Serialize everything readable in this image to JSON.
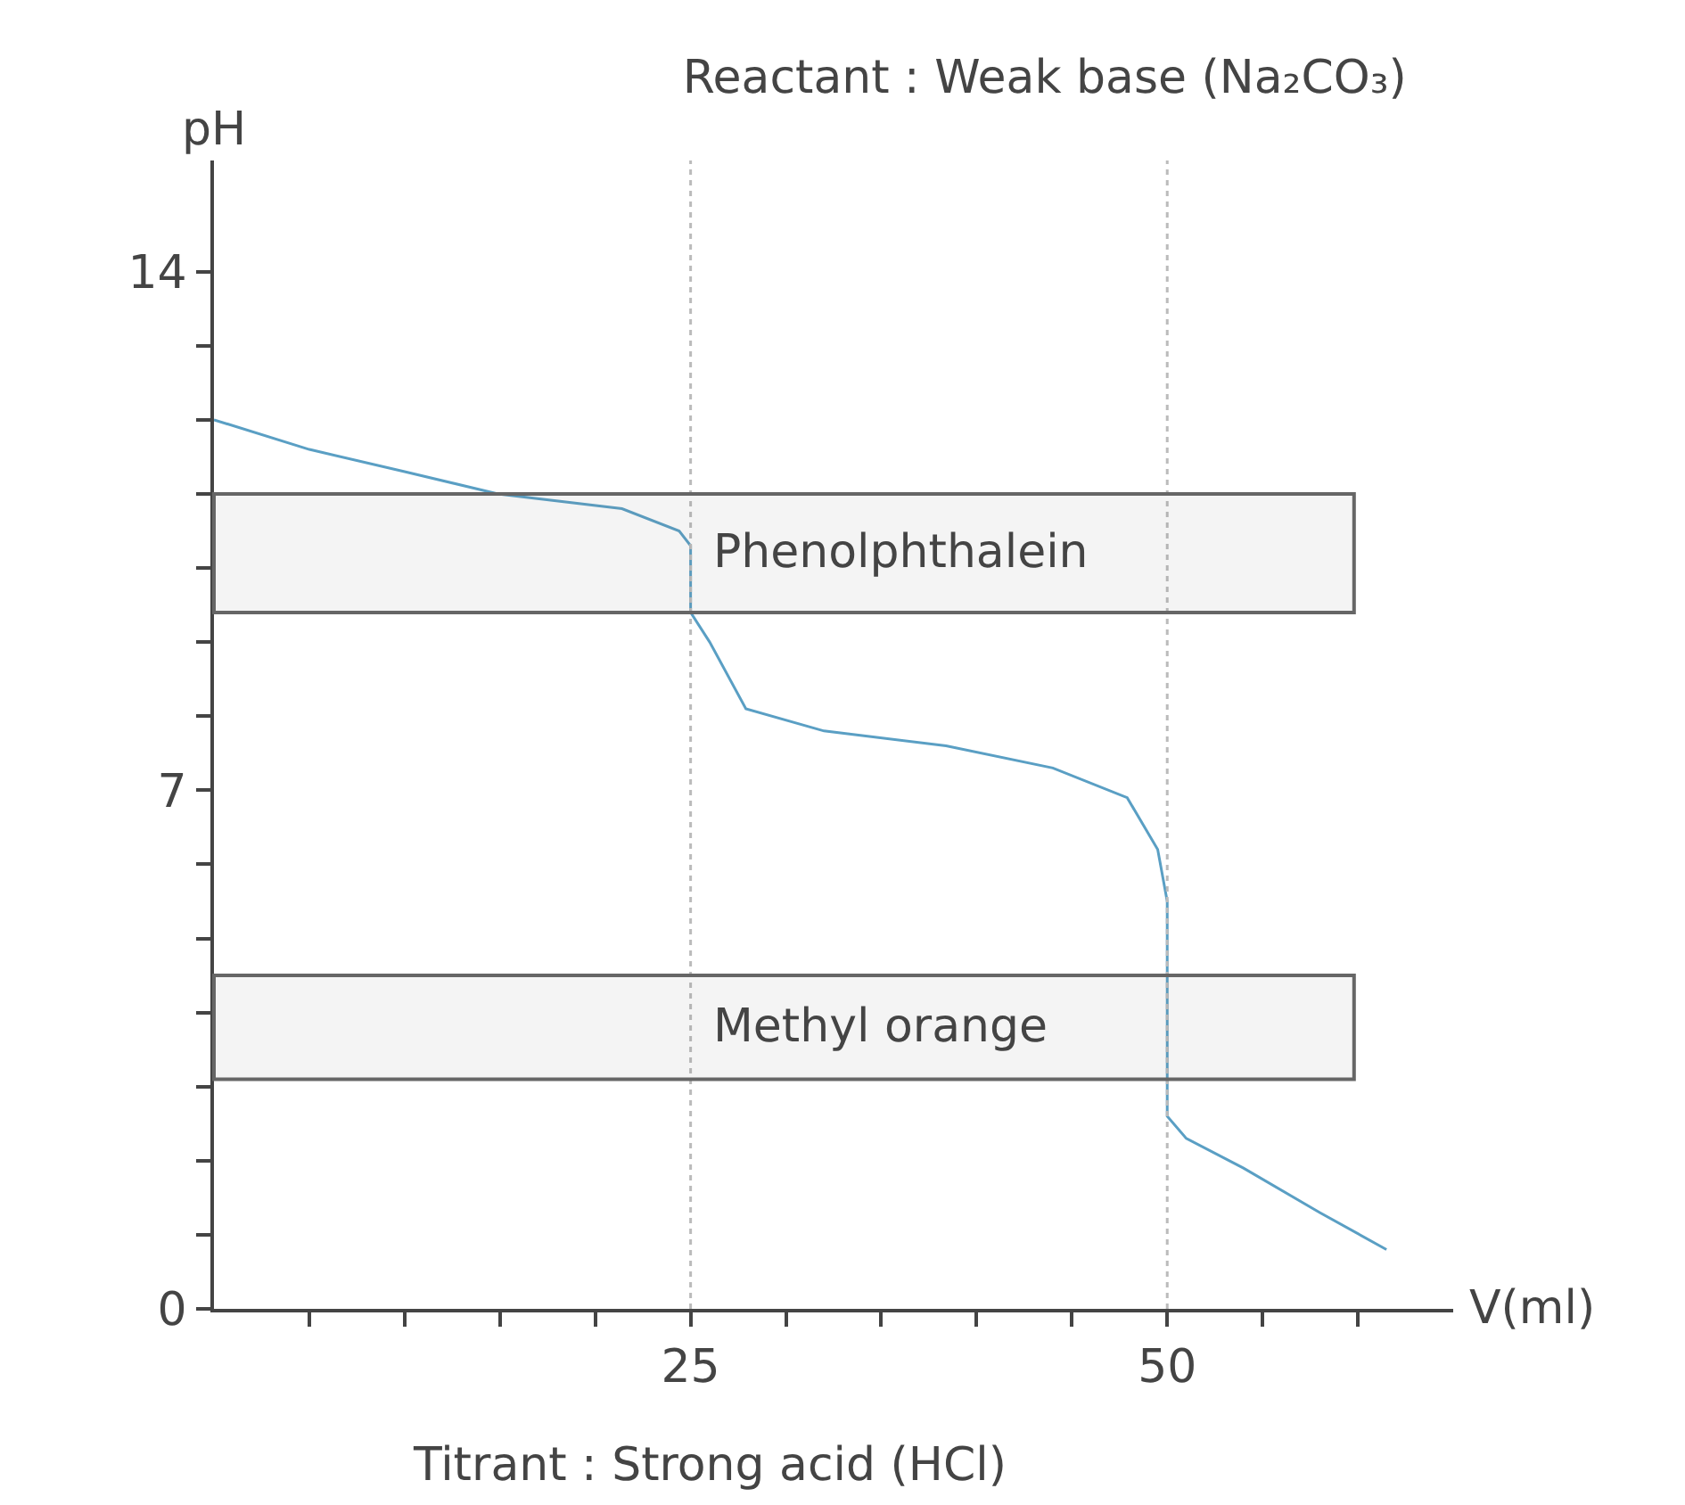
{
  "chart_data": {
    "type": "line",
    "title": "Reactant : Weak base (Na₂CO₃)",
    "xlabel": "V(ml)",
    "ylabel": "pH",
    "annotations": [
      "Titrant : Strong acid (HCl)"
    ],
    "series": [
      {
        "color": "#5a9fc4",
        "x": [
          0,
          5,
          10,
          14.9,
          21.4,
          24.4,
          25,
          25,
          26,
          27.9,
          32,
          38.4,
          44,
          47.9,
          49.5,
          50,
          50,
          51,
          54,
          58,
          61.5
        ],
        "values": [
          12,
          11.6,
          11.3,
          11.0,
          10.8,
          10.5,
          10.3,
          9.4,
          9.0,
          8.1,
          7.8,
          7.6,
          7.3,
          6.9,
          6.2,
          5.5,
          2.6,
          2.3,
          1.9,
          1.3,
          0.8
        ]
      }
    ],
    "xlim": [
      0,
      65
    ],
    "ylim": [
      0,
      15.5
    ],
    "xticks": [
      {
        "value": 5,
        "label": null
      },
      {
        "value": 10,
        "label": null
      },
      {
        "value": 15,
        "label": null
      },
      {
        "value": 20,
        "label": null
      },
      25,
      {
        "value": 30,
        "label": null
      },
      {
        "value": 35,
        "label": null
      },
      {
        "value": 40,
        "label": null
      },
      {
        "value": 45,
        "label": null
      },
      50,
      {
        "value": 55,
        "label": null
      },
      {
        "value": 60,
        "label": null
      }
    ],
    "yticks": [
      0,
      {
        "value": 1,
        "label": null
      },
      {
        "value": 2,
        "label": null
      },
      {
        "value": 3,
        "label": null
      },
      {
        "value": 4,
        "label": null
      },
      {
        "value": 5,
        "label": null
      },
      {
        "value": 6,
        "label": null
      },
      7,
      {
        "value": 8,
        "label": null
      },
      {
        "value": 9,
        "label": null
      },
      {
        "value": 10,
        "label": null
      },
      {
        "value": 11,
        "label": null
      },
      {
        "value": 12,
        "label": null
      },
      {
        "value": 13,
        "label": null
      },
      14
    ],
    "ref_lines": [
      {
        "axis": "x",
        "value": 25,
        "line_style": "dotted",
        "color": "#bbbbbb"
      },
      {
        "axis": "x",
        "value": 50,
        "line_style": "dotted",
        "color": "#bbbbbb"
      }
    ],
    "bands": [
      {
        "axis": "y",
        "from": 9.4,
        "to": 11,
        "label": "Phenolphthalein",
        "color": "#666666"
      },
      {
        "axis": "y",
        "from": 3.1,
        "to": 4.5,
        "label": "Methyl orange",
        "color": "#666666"
      }
    ],
    "marker": "none",
    "line_style": "solid"
  }
}
